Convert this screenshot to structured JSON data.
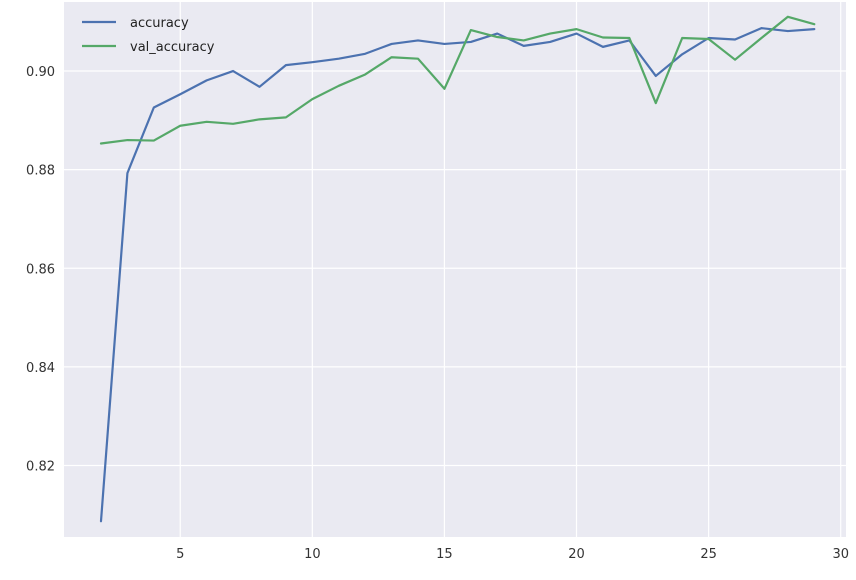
{
  "chart_data": {
    "type": "line",
    "title": "",
    "xlabel": "",
    "ylabel": "",
    "x": [
      2,
      3,
      4,
      5,
      6,
      7,
      8,
      9,
      10,
      11,
      12,
      13,
      14,
      15,
      16,
      17,
      18,
      19,
      20,
      21,
      22,
      23,
      24,
      25,
      26,
      27,
      28,
      29
    ],
    "series": [
      {
        "name": "accuracy",
        "color": "#4c72b0",
        "values": [
          0.8087,
          0.8793,
          0.8926,
          0.8953,
          0.8981,
          0.9,
          0.8968,
          0.9012,
          0.9018,
          0.9025,
          0.9035,
          0.9055,
          0.9062,
          0.9055,
          0.9059,
          0.9076,
          0.9051,
          0.9059,
          0.9076,
          0.9049,
          0.9062,
          0.899,
          0.9034,
          0.9067,
          0.9064,
          0.9087,
          0.9081,
          0.9085
        ]
      },
      {
        "name": "val_accuracy",
        "color": "#55a868",
        "values": [
          0.8853,
          0.886,
          0.8859,
          0.8889,
          0.8897,
          0.8893,
          0.8902,
          0.8906,
          0.8943,
          0.897,
          0.8993,
          0.9028,
          0.9025,
          0.8964,
          0.9083,
          0.9069,
          0.9062,
          0.9076,
          0.9085,
          0.9068,
          0.9067,
          0.8935,
          0.9067,
          0.9065,
          0.9023,
          0.9067,
          0.911,
          0.9095
        ]
      }
    ],
    "xlim": [
      0.6,
      30.2
    ],
    "ylim": [
      0.8055,
      0.914
    ],
    "xticks": [
      5,
      10,
      15,
      20,
      25,
      30
    ],
    "yticks": [
      0.82,
      0.84,
      0.86,
      0.88,
      0.9
    ],
    "ytick_labels": [
      "0.82",
      "0.84",
      "0.86",
      "0.88",
      "0.90"
    ],
    "grid": true,
    "legend": "top-left",
    "style": {
      "background": "#eaeaf2",
      "grid_color": "#ffffff"
    }
  }
}
